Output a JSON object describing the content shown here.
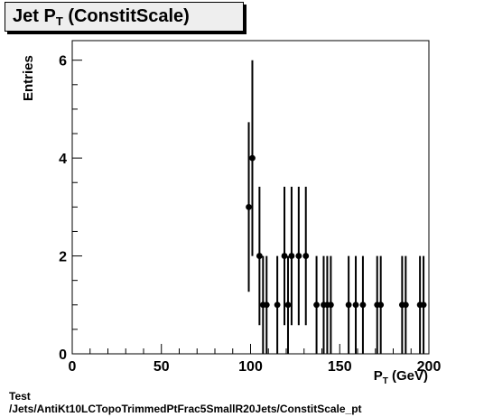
{
  "title": {
    "main": "Jet P",
    "sub": "T",
    "rest": " (ConstitScale)"
  },
  "caption": {
    "line1": "Test",
    "line2": "/Jets/AntiKt10LCTopoTrimmedPtFrac5SmallR20Jets/ConstitScale_pt"
  },
  "chart_data": {
    "type": "scatter",
    "title": "Jet P_T (ConstitScale)",
    "xlabel": "P_T (GeV)",
    "ylabel": "Entries",
    "xlim": [
      0,
      200
    ],
    "ylim": [
      0,
      6.4
    ],
    "x_ticks": [
      "0",
      "50",
      "100",
      "150",
      "200"
    ],
    "y_ticks": [
      "0",
      "2",
      "4",
      "6"
    ],
    "grid": false,
    "legend": "none",
    "error_bars": "sqrt(N)",
    "series": [
      {
        "marker": "filled-circle",
        "color": "#000000",
        "points": [
          {
            "x": 99,
            "y": 3
          },
          {
            "x": 101,
            "y": 4
          },
          {
            "x": 105,
            "y": 2
          },
          {
            "x": 107,
            "y": 1
          },
          {
            "x": 109,
            "y": 1
          },
          {
            "x": 115,
            "y": 1
          },
          {
            "x": 119,
            "y": 2
          },
          {
            "x": 121,
            "y": 1
          },
          {
            "x": 123,
            "y": 2
          },
          {
            "x": 127,
            "y": 2
          },
          {
            "x": 131,
            "y": 2
          },
          {
            "x": 137,
            "y": 1
          },
          {
            "x": 141,
            "y": 1
          },
          {
            "x": 143,
            "y": 1
          },
          {
            "x": 145,
            "y": 1
          },
          {
            "x": 155,
            "y": 1
          },
          {
            "x": 159,
            "y": 1
          },
          {
            "x": 163,
            "y": 1
          },
          {
            "x": 171,
            "y": 1
          },
          {
            "x": 173,
            "y": 1
          },
          {
            "x": 185,
            "y": 1
          },
          {
            "x": 187,
            "y": 1
          },
          {
            "x": 195,
            "y": 1
          },
          {
            "x": 197,
            "y": 1
          }
        ]
      }
    ]
  }
}
